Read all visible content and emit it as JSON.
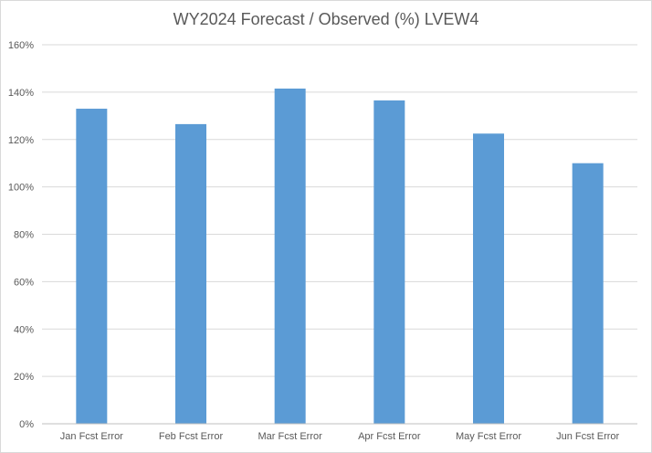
{
  "chart_data": {
    "type": "bar",
    "title": "WY2024 Forecast / Observed (%) LVEW4",
    "xlabel": "",
    "ylabel": "",
    "categories": [
      "Jan Fcst Error",
      "Feb Fcst Error",
      "Mar Fcst Error",
      "Apr Fcst Error",
      "May Fcst Error",
      "Jun Fcst Error"
    ],
    "values": [
      133,
      126.5,
      141.5,
      136.5,
      122.5,
      110
    ],
    "ylim": [
      0,
      160
    ],
    "yticks": [
      0,
      20,
      40,
      60,
      80,
      100,
      120,
      140,
      160
    ],
    "ytick_labels": [
      "0%",
      "20%",
      "40%",
      "60%",
      "80%",
      "100%",
      "120%",
      "140%",
      "160%"
    ],
    "grid": true,
    "legend": "none",
    "bar_color": "#5b9bd5",
    "grid_color": "#d9d9d9",
    "axis_color": "#bfbfbf"
  }
}
